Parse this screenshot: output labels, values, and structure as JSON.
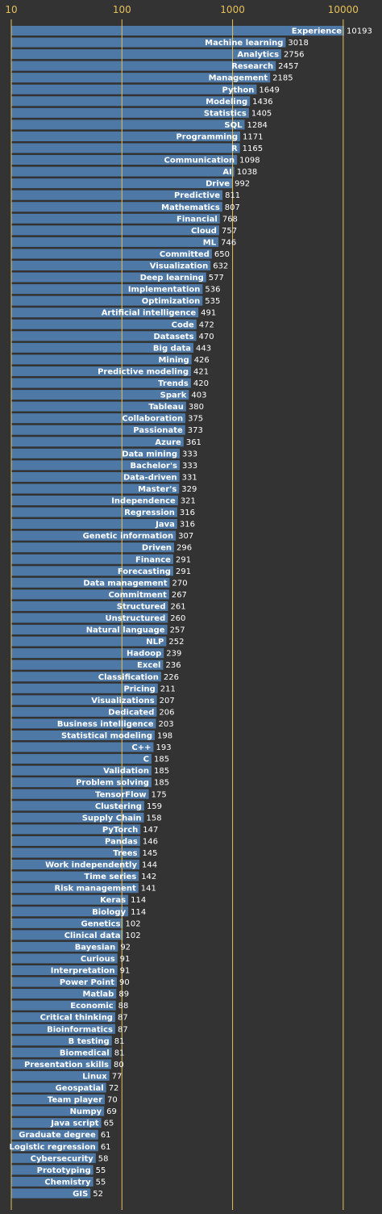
{
  "chart_data": {
    "type": "bar",
    "orientation": "horizontal",
    "x_scale": "log",
    "xlim": [
      10,
      10193
    ],
    "x_ticks": [
      "10",
      "100",
      "1000",
      "10000"
    ],
    "grid": "vertical lines at major ticks",
    "colors": {
      "background": "#333333",
      "bar": "#4e79a7",
      "grid": "#e6c15a",
      "tick_text": "#e6c15a",
      "text": "#ffffff"
    },
    "categories": [
      "Experience",
      "Machine learning",
      "Analytics",
      "Research",
      "Management",
      "Python",
      "Modeling",
      "Statistics",
      "SQL",
      "Programming",
      "R",
      "Communication",
      "AI",
      "Drive",
      "Predictive",
      "Mathematics",
      "Financial",
      "Cloud",
      "ML",
      "Committed",
      "Visualization",
      "Deep learning",
      "Implementation",
      "Optimization",
      "Artificial intelligence",
      "Code",
      "Datasets",
      "Big data",
      "Mining",
      "Predictive modeling",
      "Trends",
      "Spark",
      "Tableau",
      "Collaboration",
      "Passionate",
      "Azure",
      "Data mining",
      "Bachelor's",
      "Data-driven",
      "Master's",
      "Independence",
      "Regression",
      "Java",
      "Genetic information",
      "Driven",
      "Finance",
      "Forecasting",
      "Data management",
      "Commitment",
      "Structured",
      "Unstructured",
      "Natural language",
      "NLP",
      "Hadoop",
      "Excel",
      "Classification",
      "Pricing",
      "Visualizations",
      "Dedicated",
      "Business intelligence",
      "Statistical modeling",
      "C++",
      "C",
      "Validation",
      "Problem solving",
      "TensorFlow",
      "Clustering",
      "Supply Chain",
      "PyTorch",
      "Pandas",
      "Trees",
      "Work independently",
      "Time series",
      "Risk management",
      "Keras",
      "Biology",
      "Genetics",
      "Clinical data",
      "Bayesian",
      "Curious",
      "Interpretation",
      "Power Point",
      "Matlab",
      "Economic",
      "Critical thinking",
      "Bioinformatics",
      "B testing",
      "Biomedical",
      "Presentation skills",
      "Linux",
      "Geospatial",
      "Team player",
      "Numpy",
      "Java script",
      "Graduate degree",
      "Logistic regression",
      "Cybersecurity",
      "Prototyping",
      "Chemistry",
      "GIS"
    ],
    "values": [
      10193,
      3018,
      2756,
      2457,
      2185,
      1649,
      1436,
      1405,
      1284,
      1171,
      1165,
      1098,
      1038,
      992,
      811,
      807,
      768,
      757,
      746,
      650,
      632,
      577,
      536,
      535,
      491,
      472,
      470,
      443,
      426,
      421,
      420,
      403,
      380,
      375,
      373,
      361,
      333,
      333,
      331,
      329,
      321,
      316,
      316,
      307,
      296,
      291,
      291,
      270,
      267,
      261,
      260,
      257,
      252,
      239,
      236,
      226,
      211,
      207,
      206,
      203,
      198,
      193,
      185,
      185,
      185,
      175,
      159,
      158,
      147,
      146,
      145,
      144,
      142,
      141,
      114,
      114,
      102,
      102,
      92,
      91,
      91,
      90,
      89,
      88,
      87,
      87,
      81,
      81,
      80,
      77,
      72,
      70,
      69,
      65,
      61,
      61,
      58,
      55,
      55,
      52
    ]
  }
}
